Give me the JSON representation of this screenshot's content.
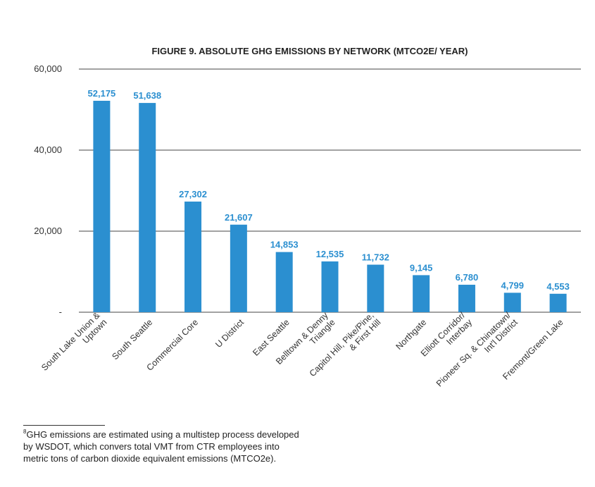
{
  "chart_data": {
    "type": "bar",
    "title": "FIGURE 9. ABSOLUTE GHG EMISSIONS BY NETWORK (MTCO2E/ YEAR)",
    "categories": [
      [
        "South Lake Union &",
        "Uptown"
      ],
      [
        "South Seattle"
      ],
      [
        "Commercial Core"
      ],
      [
        "U District"
      ],
      [
        "East Seattle"
      ],
      [
        "Belltown & Denny",
        "Triangle"
      ],
      [
        "Capitol Hill, Pike/Pine,",
        "& First Hill"
      ],
      [
        "Northgate"
      ],
      [
        "Elliott Corridor/",
        "Interbay"
      ],
      [
        "Pioneer Sq. & Chinatown/",
        "Int'l District"
      ],
      [
        "Fremont/Green Lake"
      ]
    ],
    "values": [
      52175,
      51638,
      27302,
      21607,
      14853,
      12535,
      11732,
      9145,
      6780,
      4799,
      4553
    ],
    "value_labels": [
      "52,175",
      "51,638",
      "27,302",
      "21,607",
      "14,853",
      "12,535",
      "11,732",
      "9,145",
      "6,780",
      "4,799",
      "4,553"
    ],
    "y_ticks": [
      {
        "value": 0,
        "label": "-"
      },
      {
        "value": 20000,
        "label": "20,000"
      },
      {
        "value": 40000,
        "label": "40,000"
      },
      {
        "value": 60000,
        "label": "60,000"
      }
    ],
    "ylim": [
      0,
      60000
    ],
    "grid": true,
    "legend": "none",
    "bar_color": "#2b8fd0"
  },
  "footnote": {
    "marker": "8",
    "text": "GHG emissions are estimated using a multistep process developed by WSDOT, which convers total VMT from CTR employees into metric tons of carbon dioxide equivalent emissions (MTCO2e)."
  }
}
